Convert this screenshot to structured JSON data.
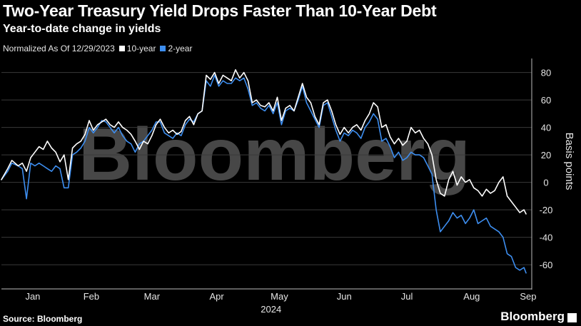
{
  "title": "Two-Year Treasury Yield Drops Faster Than 10-Year Debt",
  "subtitle": "Year-to-date change in yields",
  "legend": {
    "note": "Normalized As Of 12/29/2023",
    "items": [
      {
        "label": "10-year",
        "color": "#ffffff"
      },
      {
        "label": "2-year",
        "color": "#3d8ef0"
      }
    ]
  },
  "watermark": "Bloomberg",
  "footer": {
    "source": "Source: Bloomberg",
    "brand": "Bloomberg"
  },
  "chart_data": {
    "type": "line",
    "ylabel": "Basis points",
    "ylim": [
      -75,
      85
    ],
    "yticks": [
      80,
      60,
      40,
      20,
      0,
      -20,
      -40,
      -60
    ],
    "xlim": [
      0,
      251
    ],
    "month_labels": [
      {
        "label": "Jan",
        "x": 15
      },
      {
        "label": "Feb",
        "x": 43
      },
      {
        "label": "Mar",
        "x": 72
      },
      {
        "label": "Apr",
        "x": 103
      },
      {
        "label": "May",
        "x": 133
      },
      {
        "label": "Jun",
        "x": 164
      },
      {
        "label": "Jul",
        "x": 194
      },
      {
        "label": "Aug",
        "x": 225
      },
      {
        "label": "Sep",
        "x": 252
      }
    ],
    "year_label": {
      "label": "2024",
      "x": 129
    },
    "series": [
      {
        "name": "10-year",
        "color": "#ffffff",
        "points": [
          [
            0,
            2
          ],
          [
            3,
            10
          ],
          [
            5,
            16
          ],
          [
            8,
            12
          ],
          [
            10,
            14
          ],
          [
            12,
            8
          ],
          [
            14,
            18
          ],
          [
            16,
            22
          ],
          [
            18,
            26
          ],
          [
            20,
            24
          ],
          [
            22,
            30
          ],
          [
            24,
            25
          ],
          [
            26,
            22
          ],
          [
            28,
            15
          ],
          [
            30,
            20
          ],
          [
            32,
            2
          ],
          [
            34,
            25
          ],
          [
            36,
            28
          ],
          [
            38,
            30
          ],
          [
            40,
            35
          ],
          [
            42,
            45
          ],
          [
            44,
            38
          ],
          [
            46,
            42
          ],
          [
            48,
            44
          ],
          [
            50,
            46
          ],
          [
            52,
            42
          ],
          [
            54,
            40
          ],
          [
            56,
            44
          ],
          [
            58,
            40
          ],
          [
            60,
            38
          ],
          [
            62,
            35
          ],
          [
            64,
            30
          ],
          [
            66,
            24
          ],
          [
            68,
            30
          ],
          [
            70,
            28
          ],
          [
            72,
            34
          ],
          [
            74,
            42
          ],
          [
            76,
            46
          ],
          [
            78,
            40
          ],
          [
            80,
            36
          ],
          [
            82,
            38
          ],
          [
            84,
            35
          ],
          [
            86,
            37
          ],
          [
            88,
            45
          ],
          [
            90,
            48
          ],
          [
            92,
            42
          ],
          [
            94,
            50
          ],
          [
            96,
            52
          ],
          [
            98,
            78
          ],
          [
            100,
            75
          ],
          [
            102,
            80
          ],
          [
            104,
            72
          ],
          [
            106,
            78
          ],
          [
            108,
            76
          ],
          [
            110,
            74
          ],
          [
            112,
            82
          ],
          [
            114,
            76
          ],
          [
            116,
            80
          ],
          [
            118,
            74
          ],
          [
            120,
            58
          ],
          [
            122,
            60
          ],
          [
            124,
            56
          ],
          [
            126,
            55
          ],
          [
            128,
            58
          ],
          [
            130,
            52
          ],
          [
            132,
            62
          ],
          [
            134,
            45
          ],
          [
            136,
            54
          ],
          [
            138,
            56
          ],
          [
            140,
            52
          ],
          [
            142,
            62
          ],
          [
            144,
            72
          ],
          [
            146,
            62
          ],
          [
            148,
            58
          ],
          [
            150,
            48
          ],
          [
            152,
            42
          ],
          [
            154,
            58
          ],
          [
            156,
            60
          ],
          [
            158,
            52
          ],
          [
            160,
            42
          ],
          [
            162,
            35
          ],
          [
            164,
            40
          ],
          [
            166,
            36
          ],
          [
            168,
            40
          ],
          [
            170,
            42
          ],
          [
            172,
            38
          ],
          [
            174,
            45
          ],
          [
            176,
            50
          ],
          [
            178,
            58
          ],
          [
            180,
            55
          ],
          [
            182,
            40
          ],
          [
            184,
            42
          ],
          [
            186,
            33
          ],
          [
            188,
            28
          ],
          [
            190,
            32
          ],
          [
            192,
            27
          ],
          [
            194,
            30
          ],
          [
            196,
            40
          ],
          [
            198,
            36
          ],
          [
            200,
            38
          ],
          [
            202,
            32
          ],
          [
            204,
            28
          ],
          [
            206,
            20
          ],
          [
            208,
            2
          ],
          [
            210,
            -8
          ],
          [
            212,
            -10
          ],
          [
            214,
            2
          ],
          [
            216,
            8
          ],
          [
            218,
            -2
          ],
          [
            220,
            4
          ],
          [
            222,
            0
          ],
          [
            224,
            2
          ],
          [
            226,
            -4
          ],
          [
            228,
            -6
          ],
          [
            230,
            -10
          ],
          [
            232,
            -5
          ],
          [
            234,
            -8
          ],
          [
            236,
            -6
          ],
          [
            238,
            0
          ],
          [
            240,
            4
          ],
          [
            242,
            -10
          ],
          [
            244,
            -14
          ],
          [
            246,
            -18
          ],
          [
            248,
            -22
          ],
          [
            250,
            -20
          ],
          [
            251,
            -23
          ]
        ]
      },
      {
        "name": "2-year",
        "color": "#3d8ef0",
        "points": [
          [
            0,
            2
          ],
          [
            3,
            8
          ],
          [
            5,
            14
          ],
          [
            8,
            12
          ],
          [
            10,
            10
          ],
          [
            12,
            -12
          ],
          [
            14,
            14
          ],
          [
            16,
            12
          ],
          [
            18,
            14
          ],
          [
            20,
            12
          ],
          [
            22,
            10
          ],
          [
            24,
            8
          ],
          [
            26,
            12
          ],
          [
            28,
            10
          ],
          [
            30,
            -4
          ],
          [
            32,
            -4
          ],
          [
            34,
            20
          ],
          [
            36,
            22
          ],
          [
            38,
            25
          ],
          [
            40,
            30
          ],
          [
            42,
            40
          ],
          [
            44,
            36
          ],
          [
            46,
            40
          ],
          [
            48,
            45
          ],
          [
            50,
            44
          ],
          [
            52,
            40
          ],
          [
            54,
            36
          ],
          [
            56,
            40
          ],
          [
            58,
            34
          ],
          [
            60,
            30
          ],
          [
            62,
            28
          ],
          [
            64,
            22
          ],
          [
            66,
            28
          ],
          [
            68,
            30
          ],
          [
            70,
            34
          ],
          [
            72,
            38
          ],
          [
            74,
            44
          ],
          [
            76,
            44
          ],
          [
            78,
            36
          ],
          [
            80,
            34
          ],
          [
            82,
            32
          ],
          [
            84,
            36
          ],
          [
            86,
            34
          ],
          [
            88,
            42
          ],
          [
            90,
            46
          ],
          [
            92,
            44
          ],
          [
            94,
            50
          ],
          [
            96,
            52
          ],
          [
            98,
            74
          ],
          [
            100,
            70
          ],
          [
            102,
            78
          ],
          [
            104,
            70
          ],
          [
            106,
            74
          ],
          [
            108,
            72
          ],
          [
            110,
            72
          ],
          [
            112,
            76
          ],
          [
            114,
            74
          ],
          [
            116,
            76
          ],
          [
            118,
            68
          ],
          [
            120,
            56
          ],
          [
            122,
            58
          ],
          [
            124,
            54
          ],
          [
            126,
            52
          ],
          [
            128,
            56
          ],
          [
            130,
            50
          ],
          [
            132,
            58
          ],
          [
            134,
            42
          ],
          [
            136,
            52
          ],
          [
            138,
            54
          ],
          [
            140,
            52
          ],
          [
            142,
            60
          ],
          [
            144,
            70
          ],
          [
            146,
            58
          ],
          [
            148,
            52
          ],
          [
            150,
            46
          ],
          [
            152,
            40
          ],
          [
            154,
            56
          ],
          [
            156,
            58
          ],
          [
            158,
            48
          ],
          [
            160,
            38
          ],
          [
            162,
            30
          ],
          [
            164,
            36
          ],
          [
            166,
            34
          ],
          [
            168,
            38
          ],
          [
            170,
            36
          ],
          [
            172,
            32
          ],
          [
            174,
            40
          ],
          [
            176,
            44
          ],
          [
            178,
            50
          ],
          [
            180,
            46
          ],
          [
            182,
            30
          ],
          [
            184,
            32
          ],
          [
            186,
            26
          ],
          [
            188,
            18
          ],
          [
            190,
            22
          ],
          [
            192,
            16
          ],
          [
            194,
            18
          ],
          [
            196,
            22
          ],
          [
            198,
            20
          ],
          [
            200,
            20
          ],
          [
            202,
            18
          ],
          [
            204,
            12
          ],
          [
            206,
            6
          ],
          [
            208,
            -20
          ],
          [
            210,
            -36
          ],
          [
            212,
            -32
          ],
          [
            214,
            -28
          ],
          [
            216,
            -22
          ],
          [
            218,
            -26
          ],
          [
            220,
            -24
          ],
          [
            222,
            -30
          ],
          [
            224,
            -26
          ],
          [
            226,
            -20
          ],
          [
            228,
            -30
          ],
          [
            230,
            -28
          ],
          [
            232,
            -26
          ],
          [
            234,
            -32
          ],
          [
            236,
            -34
          ],
          [
            238,
            -36
          ],
          [
            240,
            -40
          ],
          [
            242,
            -52
          ],
          [
            244,
            -54
          ],
          [
            246,
            -62
          ],
          [
            248,
            -64
          ],
          [
            250,
            -62
          ],
          [
            251,
            -66
          ]
        ]
      }
    ]
  }
}
